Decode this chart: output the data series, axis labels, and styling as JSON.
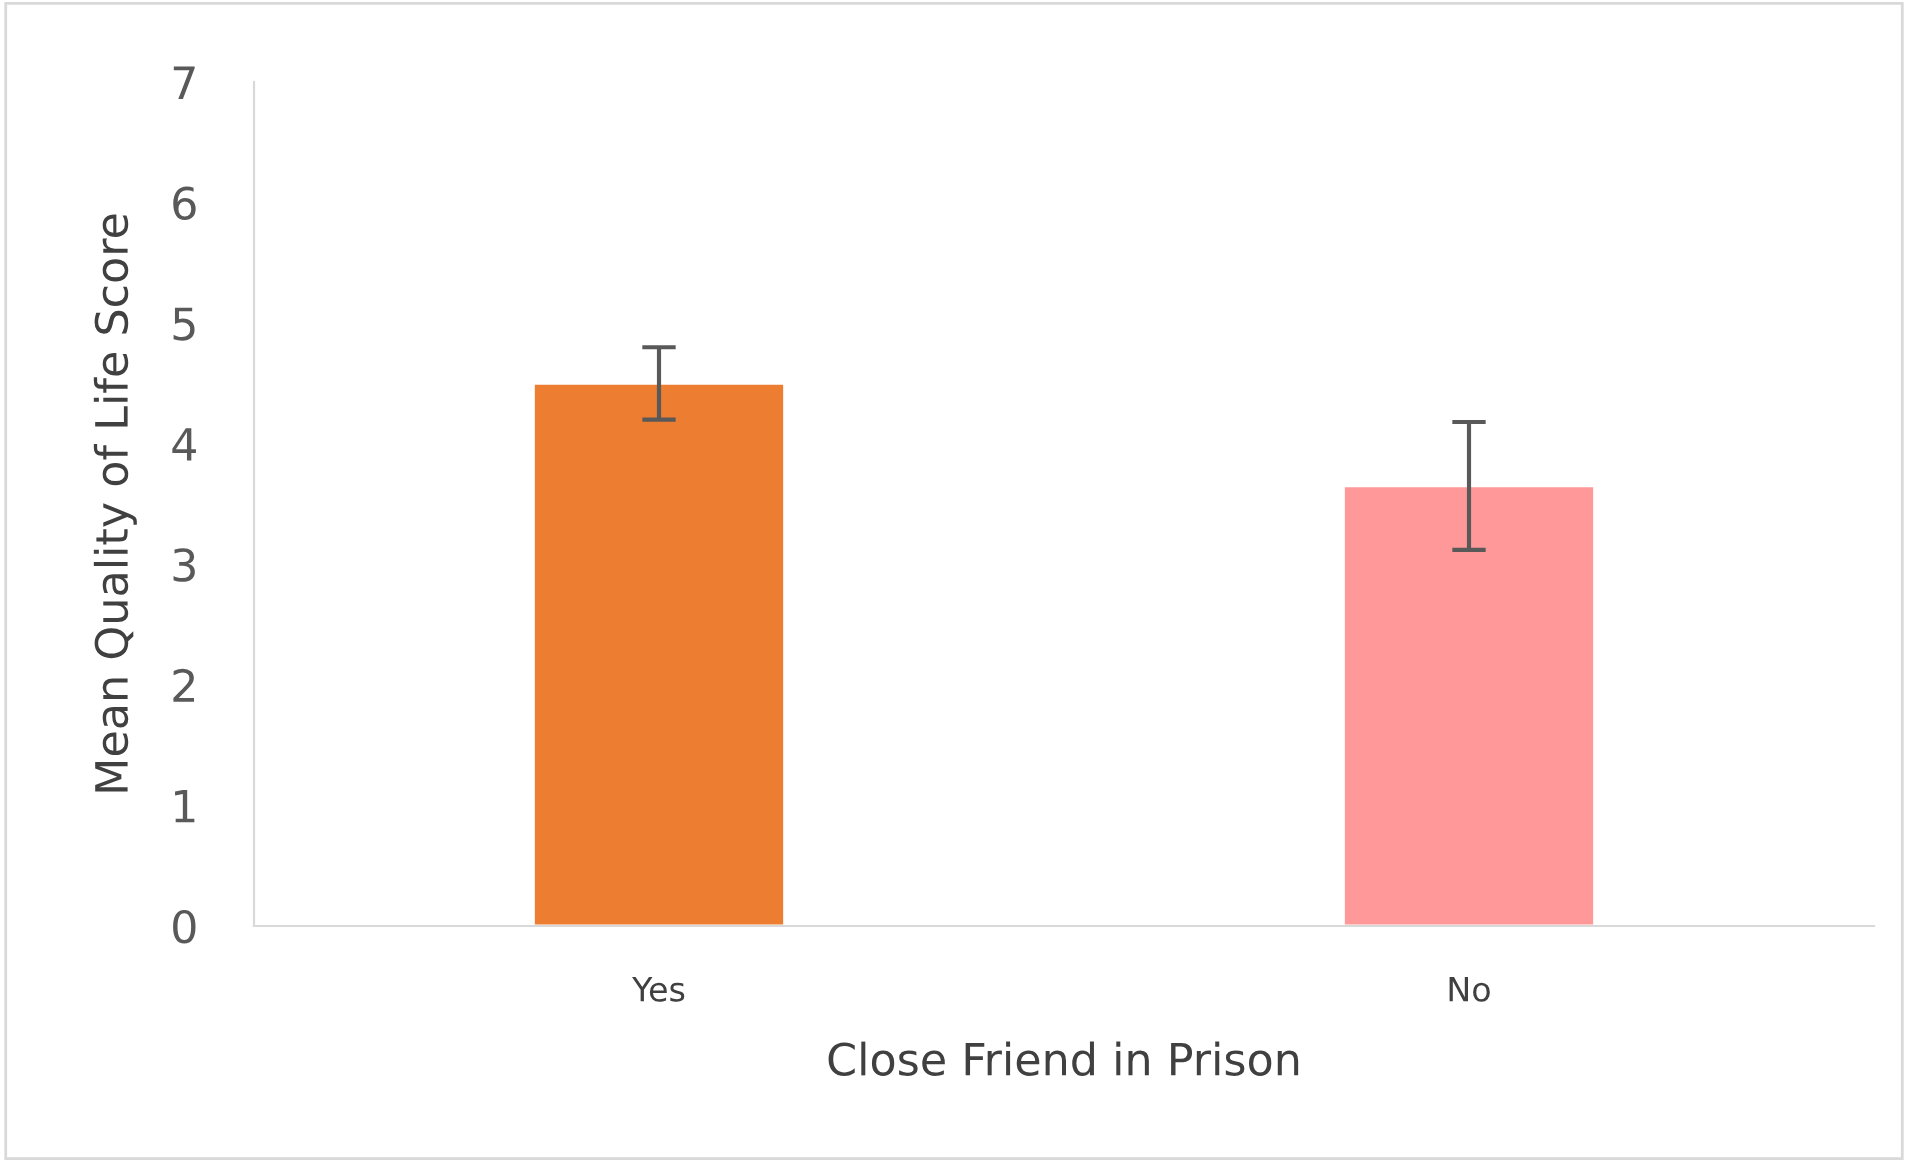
{
  "chart_data": {
    "type": "bar",
    "xlabel": "Close Friend in Prison",
    "ylabel": "Mean Quality of Life Score",
    "categories": [
      "Yes",
      "No"
    ],
    "values": [
      4.5,
      3.65
    ],
    "colors": [
      "#ed7d31",
      "#ff9999"
    ],
    "errors": [
      0.3,
      0.53
    ],
    "ylim": [
      0,
      7
    ],
    "yticks": [
      0,
      1,
      2,
      3,
      4,
      5,
      6,
      7
    ],
    "grid": false
  }
}
